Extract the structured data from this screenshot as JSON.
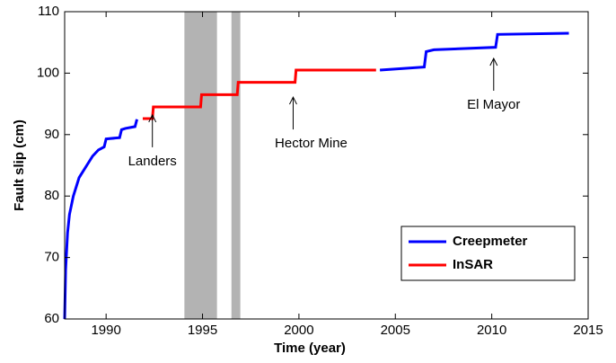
{
  "chart_data": {
    "type": "line",
    "xlabel": "Time (year)",
    "ylabel": "Fault slip (cm)",
    "xlim": [
      1987.85,
      2015
    ],
    "ylim": [
      60,
      110
    ],
    "xticks": [
      1990,
      1995,
      2000,
      2005,
      2010,
      2015
    ],
    "yticks": [
      60,
      70,
      80,
      90,
      100,
      110
    ],
    "legend": "lower right",
    "shaded_regions": [
      [
        1994.06,
        1995.75
      ],
      [
        1996.5,
        1996.96
      ]
    ],
    "shade_color": "#b3b3b3",
    "series": [
      {
        "name": "Creepmeter",
        "color": "#0000ff",
        "x": [
          1987.85,
          1987.9,
          1988.0,
          1988.1,
          1988.3,
          1988.6,
          1989.0,
          1989.3,
          1989.6,
          1989.9,
          1990.0,
          1990.7,
          1990.8,
          1991.0,
          1991.5,
          1991.6,
          null,
          2004.2,
          2006.5,
          2006.6,
          2007.0,
          2010.2,
          2010.3,
          2014.0
        ],
        "values": [
          60,
          68,
          74,
          77,
          80,
          83,
          85,
          86.5,
          87.5,
          88,
          89.3,
          89.5,
          90.8,
          91.0,
          91.3,
          92.5,
          null,
          100.5,
          101,
          103.5,
          103.8,
          104.2,
          106.3,
          106.5
        ]
      },
      {
        "name": "InSAR",
        "color": "#ff0000",
        "x": [
          1991.9,
          1992.4,
          1992.45,
          1994.9,
          1994.95,
          1996.8,
          1996.85,
          1999.8,
          1999.85,
          2004.0
        ],
        "values": [
          92.6,
          92.6,
          94.5,
          94.5,
          96.5,
          96.5,
          98.5,
          98.5,
          100.5,
          100.5
        ]
      }
    ],
    "annotations": [
      {
        "text": "Landers",
        "x": 1992.4,
        "y": 93.2
      },
      {
        "text": "Hector Mine",
        "x": 1999.7,
        "y": 96.1
      },
      {
        "text": "El Mayor",
        "x": 2010.1,
        "y": 102.4
      }
    ]
  }
}
